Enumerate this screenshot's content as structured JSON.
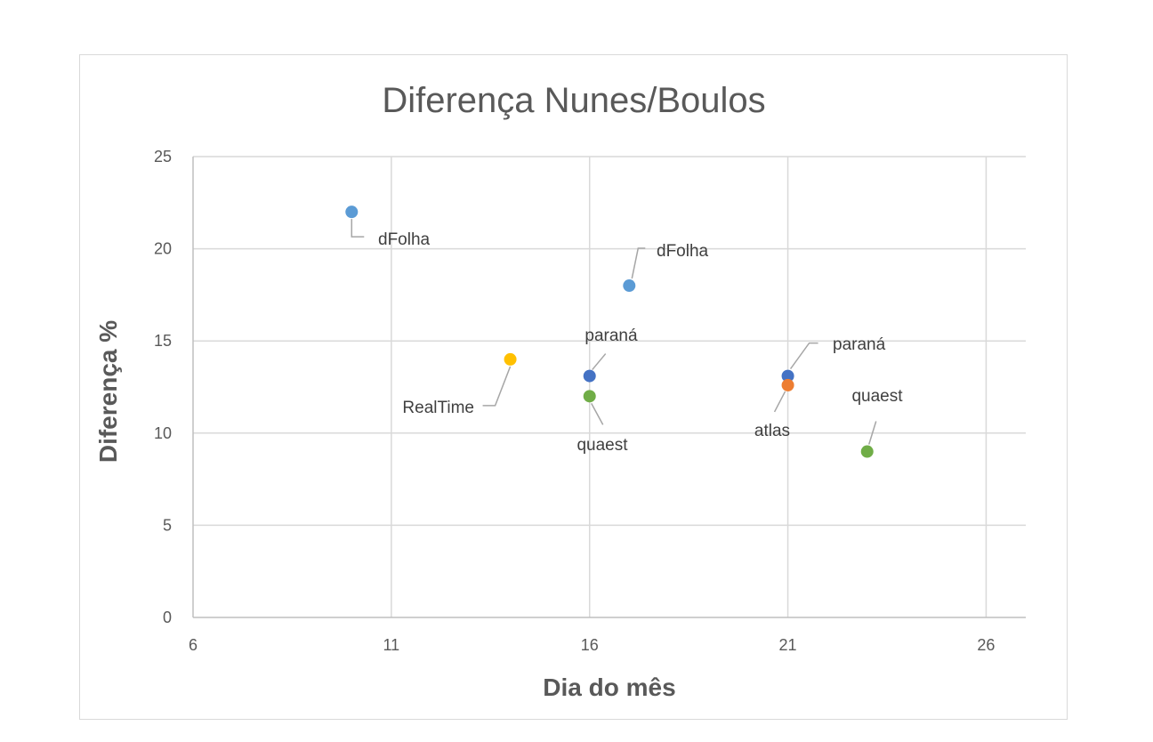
{
  "chart_data": {
    "type": "scatter",
    "title": "Diferença Nunes/Boulos",
    "xlabel": "Dia do mês",
    "ylabel": "Diferença %",
    "xlim": [
      6,
      27
    ],
    "ylim": [
      0,
      25
    ],
    "xticks": [
      6,
      11,
      16,
      21,
      26
    ],
    "yticks": [
      0,
      5,
      10,
      15,
      20,
      25
    ],
    "grid": true,
    "points": [
      {
        "label": "dFolha",
        "x": 10,
        "y": 22,
        "color": "#5b9bd5"
      },
      {
        "label": "dFolha",
        "x": 17,
        "y": 18,
        "color": "#5b9bd5"
      },
      {
        "label": "RealTime",
        "x": 14,
        "y": 14,
        "color": "#ffc000"
      },
      {
        "label": "paraná",
        "x": 16,
        "y": 13.1,
        "color": "#4472c4"
      },
      {
        "label": "quaest",
        "x": 16,
        "y": 12,
        "color": "#70ad47"
      },
      {
        "label": "paraná",
        "x": 21,
        "y": 13.1,
        "color": "#4472c4"
      },
      {
        "label": "atlas",
        "x": 21,
        "y": 12.6,
        "color": "#ed7d31"
      },
      {
        "label": "quaest",
        "x": 23,
        "y": 9,
        "color": "#70ad47"
      }
    ]
  }
}
